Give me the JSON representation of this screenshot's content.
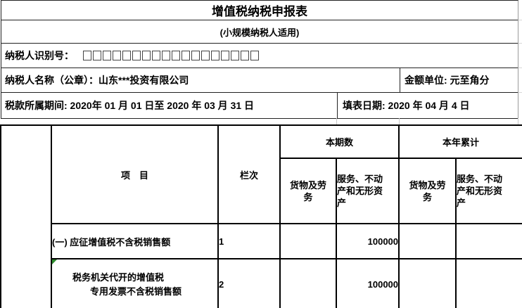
{
  "form": {
    "title": "增值税纳税申报表",
    "subtitle": "(小规模纳税人适用)",
    "taxpayer_id_label": "纳税人识别号：",
    "taxpayer_id_box_count": 18,
    "taxpayer_name_label": "纳税人名称（公章）：山东***投资有限公司",
    "amount_unit_label": "金额单位: 元至角分",
    "tax_period_label": "税款所属期间: 2020年  01 月  01 日至 2020 年  03 月  31 日",
    "filing_date_label": "填表日期: 2020 年  04 月  4 日"
  },
  "table": {
    "headers": {
      "item": "项　目",
      "column_no": "栏次",
      "current_period": "本期数",
      "year_to_date": "本年累计",
      "goods_and_services": "货物及劳\n务",
      "services_realestate_intangibles": "服务、不动\n产和无形资\n产"
    },
    "rows": [
      {
        "item_line1": "(一) 应征增值税不含税销售额",
        "item_line2": "",
        "column_no": "1",
        "current_goods": "",
        "current_services": "100000",
        "ytd_goods": "",
        "ytd_services": ""
      },
      {
        "item_line1": "税务机关代开的增值税",
        "item_line2": "专用发票不含税销售额",
        "column_no": "2",
        "current_goods": "",
        "current_services": "100000",
        "ytd_goods": "",
        "ytd_services": ""
      }
    ]
  },
  "colors": {
    "border": "#000000",
    "error_marker_green": "#2e8b2e",
    "gridline_gray": "#c8c8c8"
  }
}
